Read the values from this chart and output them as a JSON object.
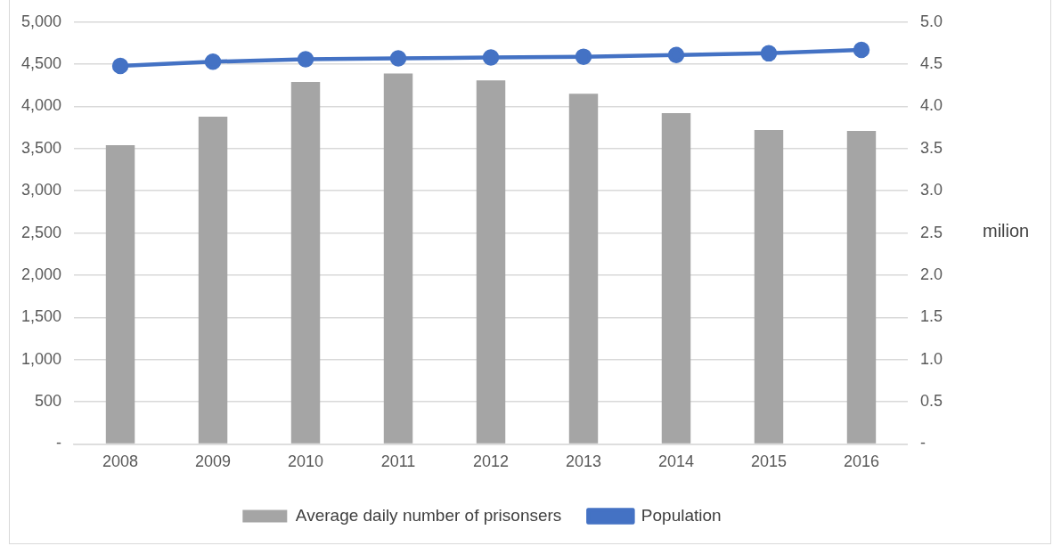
{
  "chart_data": {
    "type": "bar",
    "y2label": "milion",
    "categories": [
      "2008",
      "2009",
      "2010",
      "2011",
      "2012",
      "2013",
      "2014",
      "2015",
      "2016"
    ],
    "series": [
      {
        "name": "Average daily number of prisonsers",
        "color": "#a5a5a5",
        "values": [
          3540,
          3880,
          4290,
          4390,
          4310,
          4150,
          3920,
          3720,
          3710
        ]
      },
      {
        "name": "Population",
        "type": "line",
        "axis": "y2",
        "color": "#4472c4",
        "marker": "circle",
        "values": [
          4.48,
          4.53,
          4.56,
          4.57,
          4.58,
          4.59,
          4.61,
          4.63,
          4.67
        ]
      }
    ],
    "ylim": [
      0,
      5000
    ],
    "yticks": [
      {
        "value": 0,
        "label": "-"
      },
      {
        "value": 500,
        "label": "500"
      },
      {
        "value": 1000,
        "label": "1,000"
      },
      {
        "value": 1500,
        "label": "1,500"
      },
      {
        "value": 2000,
        "label": "2,000"
      },
      {
        "value": 2500,
        "label": "2,500"
      },
      {
        "value": 3000,
        "label": "3,000"
      },
      {
        "value": 3500,
        "label": "3,500"
      },
      {
        "value": 4000,
        "label": "4,000"
      },
      {
        "value": 4500,
        "label": "4,500"
      },
      {
        "value": 5000,
        "label": "5,000"
      }
    ],
    "y2lim": [
      0,
      5
    ],
    "y2ticks": [
      {
        "value": 0,
        "label": "-"
      },
      {
        "value": 0.5,
        "label": "0.5"
      },
      {
        "value": 1,
        "label": "1.0"
      },
      {
        "value": 1.5,
        "label": "1.5"
      },
      {
        "value": 2,
        "label": "2.0"
      },
      {
        "value": 2.5,
        "label": "2.5"
      },
      {
        "value": 3,
        "label": "3.0"
      },
      {
        "value": 3.5,
        "label": "3.5"
      },
      {
        "value": 4,
        "label": "4.0"
      },
      {
        "value": 4.5,
        "label": "4.5"
      },
      {
        "value": 5,
        "label": "5.0"
      }
    ],
    "grid": "y",
    "legend": "bottom"
  }
}
